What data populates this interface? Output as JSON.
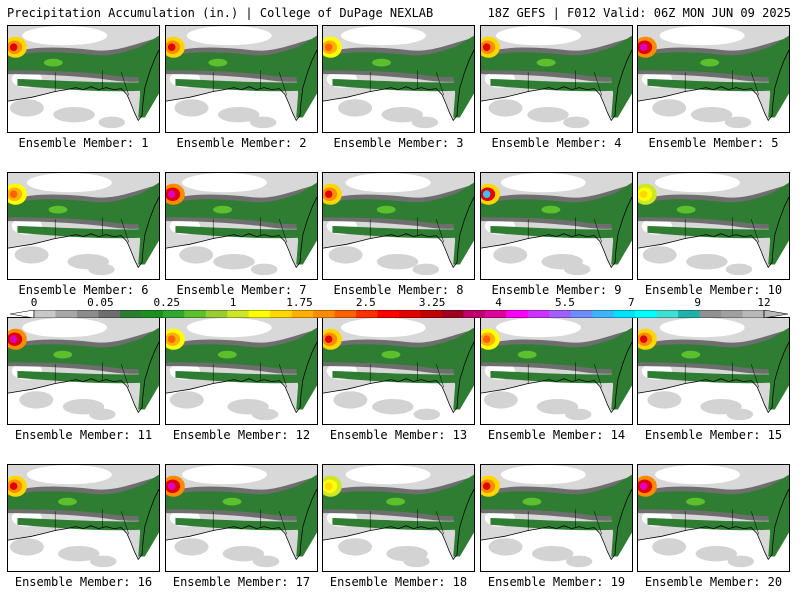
{
  "header": {
    "left": "Precipitation Accumulation (in.) | College of DuPage NEXLAB",
    "right": "18Z GEFS | F012 Valid: 06Z MON JUN 09 2025"
  },
  "colorbar": {
    "labels": [
      "0",
      "0.05",
      "0.25",
      "1",
      "1.75",
      "2.5",
      "3.25",
      "4",
      "5.5",
      "7",
      "9",
      "12"
    ],
    "colors": [
      "#c8c8c8",
      "#a8a8a8",
      "#8c8c8c",
      "#6e6e6e",
      "#2e7d32",
      "#1f8f1f",
      "#2ea82e",
      "#5cc02c",
      "#9acd32",
      "#cde62a",
      "#ffff00",
      "#ffd700",
      "#ffb000",
      "#ff8c00",
      "#ff6000",
      "#ff3000",
      "#ff0000",
      "#e00000",
      "#c00000",
      "#a00020",
      "#c0006a",
      "#e0009a",
      "#ff00ff",
      "#d030ff",
      "#a060ff",
      "#6e8cff",
      "#3cb4ff",
      "#00e0ff",
      "#00ffff",
      "#40e0d0",
      "#20b2aa",
      "#909090",
      "#a0a0a0",
      "#b8b8b8"
    ]
  },
  "members": [
    {
      "label": "Ensemble Member: 1",
      "blob": "red"
    },
    {
      "label": "Ensemble Member: 2",
      "blob": "red"
    },
    {
      "label": "Ensemble Member: 3",
      "blob": "orange"
    },
    {
      "label": "Ensemble Member: 4",
      "blob": "red"
    },
    {
      "label": "Ensemble Member: 5",
      "blob": "magenta"
    },
    {
      "label": "Ensemble Member: 6",
      "blob": "orange"
    },
    {
      "label": "Ensemble Member: 7",
      "blob": "magenta"
    },
    {
      "label": "Ensemble Member: 8",
      "blob": "red"
    },
    {
      "label": "Ensemble Member: 9",
      "blob": "cyan"
    },
    {
      "label": "Ensemble Member: 10",
      "blob": "yellow"
    },
    {
      "label": "Ensemble Member: 11",
      "blob": "magenta"
    },
    {
      "label": "Ensemble Member: 12",
      "blob": "orange"
    },
    {
      "label": "Ensemble Member: 13",
      "blob": "red"
    },
    {
      "label": "Ensemble Member: 14",
      "blob": "orange"
    },
    {
      "label": "Ensemble Member: 15",
      "blob": "red"
    },
    {
      "label": "Ensemble Member: 16",
      "blob": "red"
    },
    {
      "label": "Ensemble Member: 17",
      "blob": "magenta"
    },
    {
      "label": "Ensemble Member: 18",
      "blob": "yellow"
    },
    {
      "label": "Ensemble Member: 19",
      "blob": "red"
    },
    {
      "label": "Ensemble Member: 20",
      "blob": "magenta"
    }
  ]
}
